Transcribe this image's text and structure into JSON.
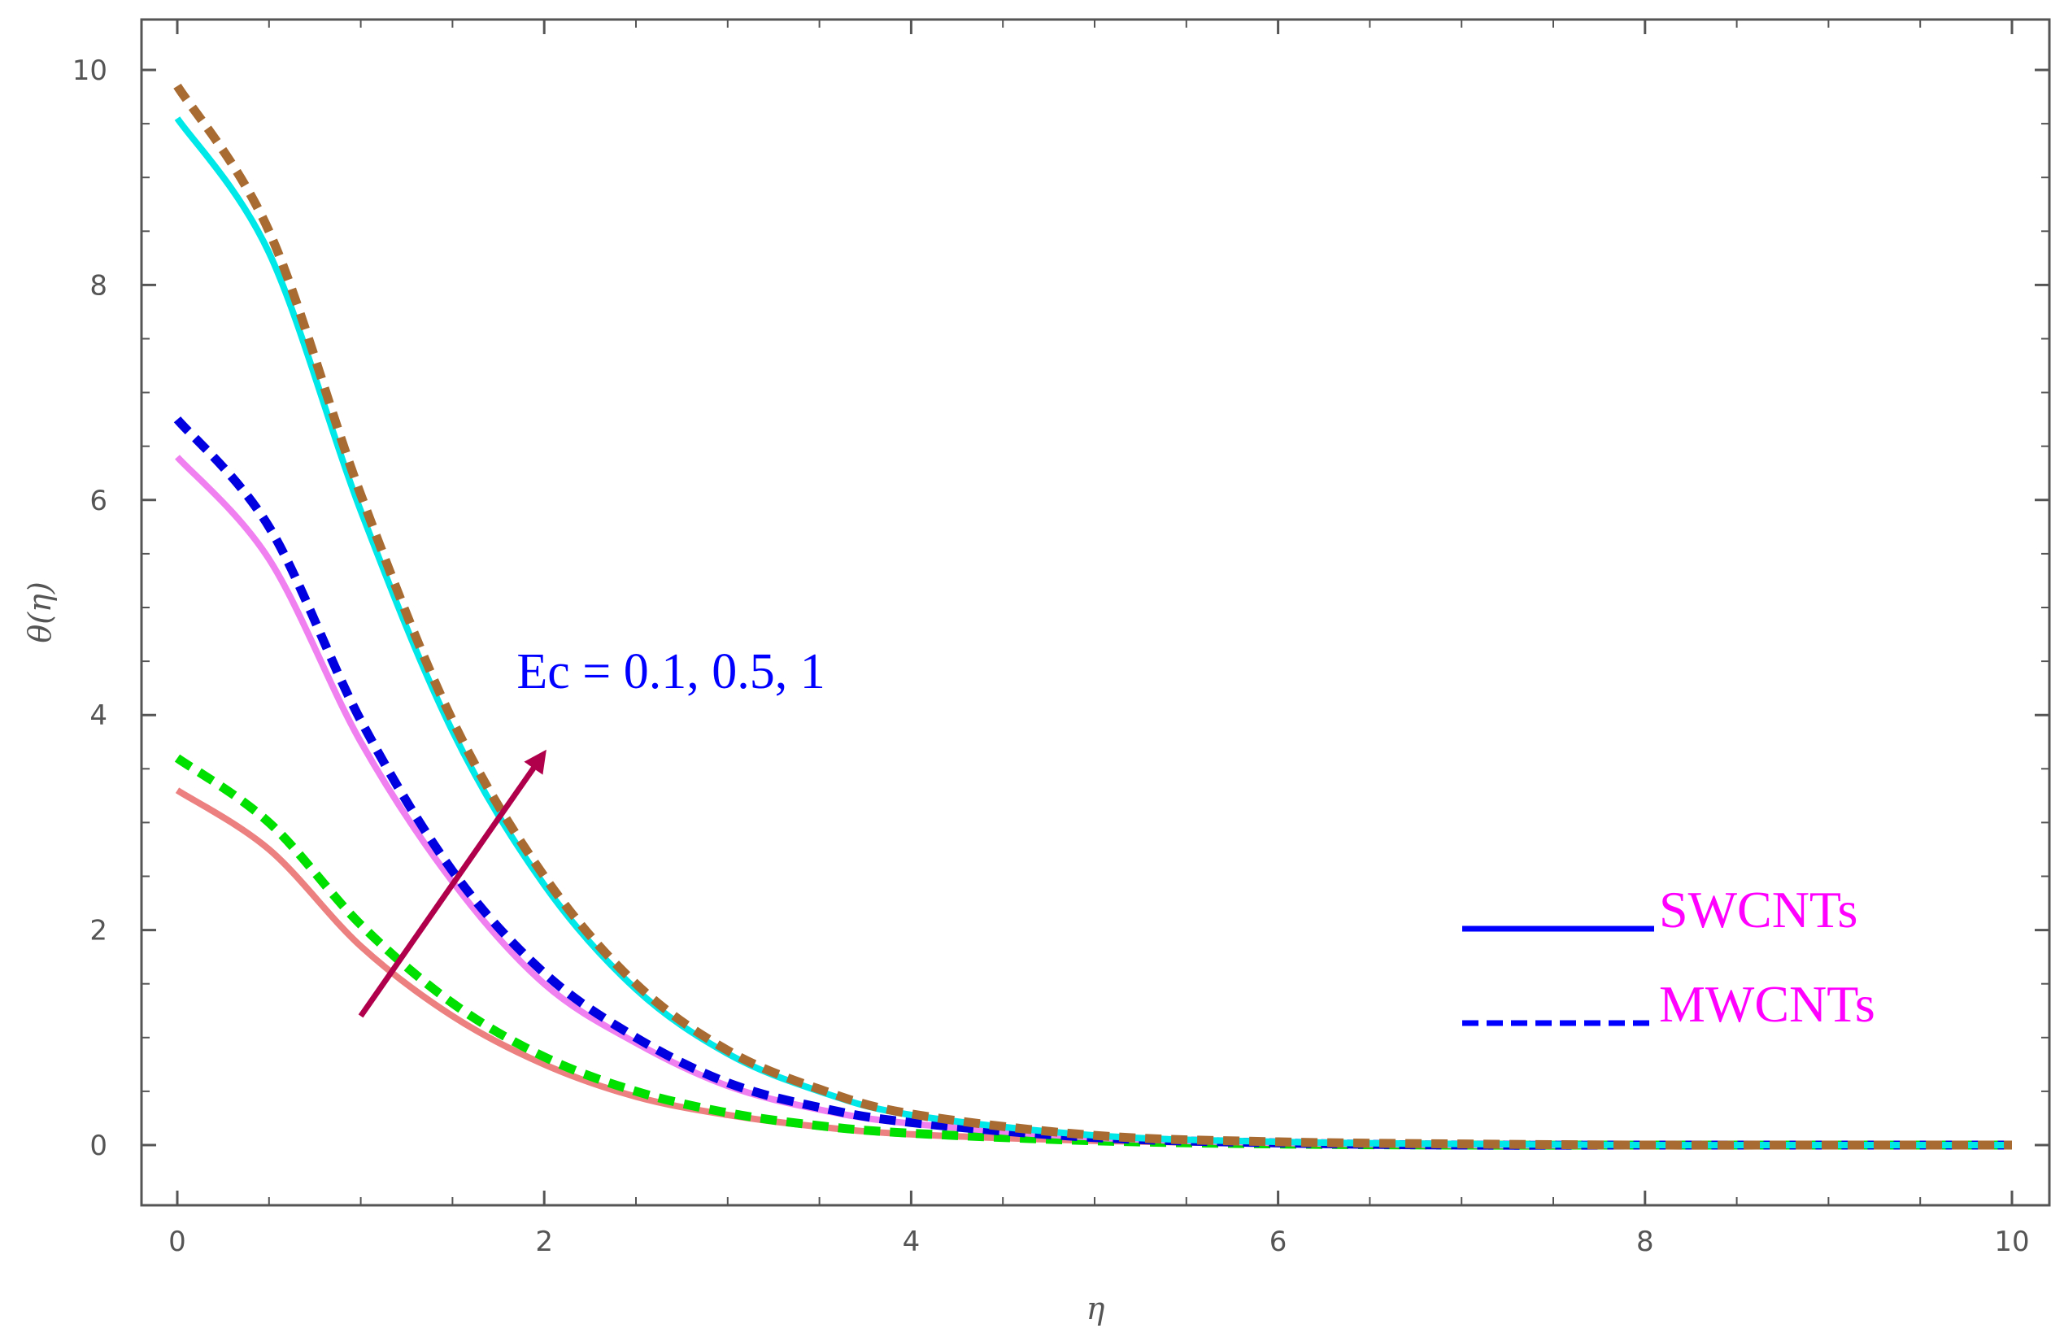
{
  "chart_data": {
    "type": "line",
    "xlabel": "η",
    "ylabel": "θ(η)",
    "xlim": [
      0,
      10
    ],
    "ylim": [
      -0.5,
      10.4
    ],
    "xticks": [
      "0",
      "2",
      "4",
      "6",
      "8",
      "10"
    ],
    "yticks": [
      "0",
      "2",
      "4",
      "6",
      "8",
      "10"
    ],
    "grid": false,
    "x": [
      0,
      0.5,
      1,
      1.5,
      2,
      2.5,
      3,
      3.5,
      4,
      5,
      6,
      7,
      8,
      9,
      10
    ],
    "series": [
      {
        "style": "solid",
        "color": "#ec8080",
        "values": [
          3.3,
          2.75,
          1.85,
          1.2,
          0.75,
          0.45,
          0.28,
          0.17,
          0.1,
          0.04,
          0.01,
          0,
          0,
          0,
          0
        ]
      },
      {
        "style": "dashed",
        "color": "#00e000",
        "values": [
          3.6,
          3.0,
          2.05,
          1.32,
          0.82,
          0.5,
          0.3,
          0.18,
          0.11,
          0.04,
          0.01,
          0,
          0,
          0,
          0
        ]
      },
      {
        "style": "solid",
        "color": "#f080f0",
        "values": [
          6.4,
          5.45,
          3.75,
          2.45,
          1.5,
          0.95,
          0.55,
          0.33,
          0.2,
          0.07,
          0.02,
          0,
          0,
          0,
          0
        ]
      },
      {
        "style": "dashed",
        "color": "#0000e0",
        "values": [
          6.75,
          5.75,
          3.95,
          2.55,
          1.6,
          1.0,
          0.58,
          0.35,
          0.21,
          0.07,
          0.02,
          0,
          0,
          0,
          0
        ]
      },
      {
        "style": "solid",
        "color": "#00e8e8",
        "values": [
          9.55,
          8.3,
          5.9,
          3.85,
          2.42,
          1.45,
          0.85,
          0.5,
          0.28,
          0.09,
          0.03,
          0.01,
          0,
          0,
          0
        ]
      },
      {
        "style": "dashed",
        "color": "#a86b32",
        "values": [
          9.85,
          8.5,
          6.05,
          3.95,
          2.5,
          1.5,
          0.88,
          0.52,
          0.29,
          0.09,
          0.03,
          0.01,
          0,
          0,
          0
        ]
      }
    ],
    "legend": {
      "placement": "right",
      "entries": [
        {
          "label": "SWCNTs",
          "style": "solid",
          "line_color": "#0000ff",
          "text_color": "#ff00ff"
        },
        {
          "label": "MWCNTs",
          "style": "dashed",
          "line_color": "#0000ff",
          "text_color": "#ff00ff"
        }
      ]
    },
    "annotation": {
      "text": "Ec = 0.1, 0.5, 1",
      "text_color": "#0000ff",
      "arrow_color": "#b0004c",
      "arrow_from": [
        1.0,
        1.2
      ],
      "arrow_to": [
        1.98,
        3.6
      ],
      "text_anchor": [
        1.85,
        4.25
      ]
    }
  }
}
